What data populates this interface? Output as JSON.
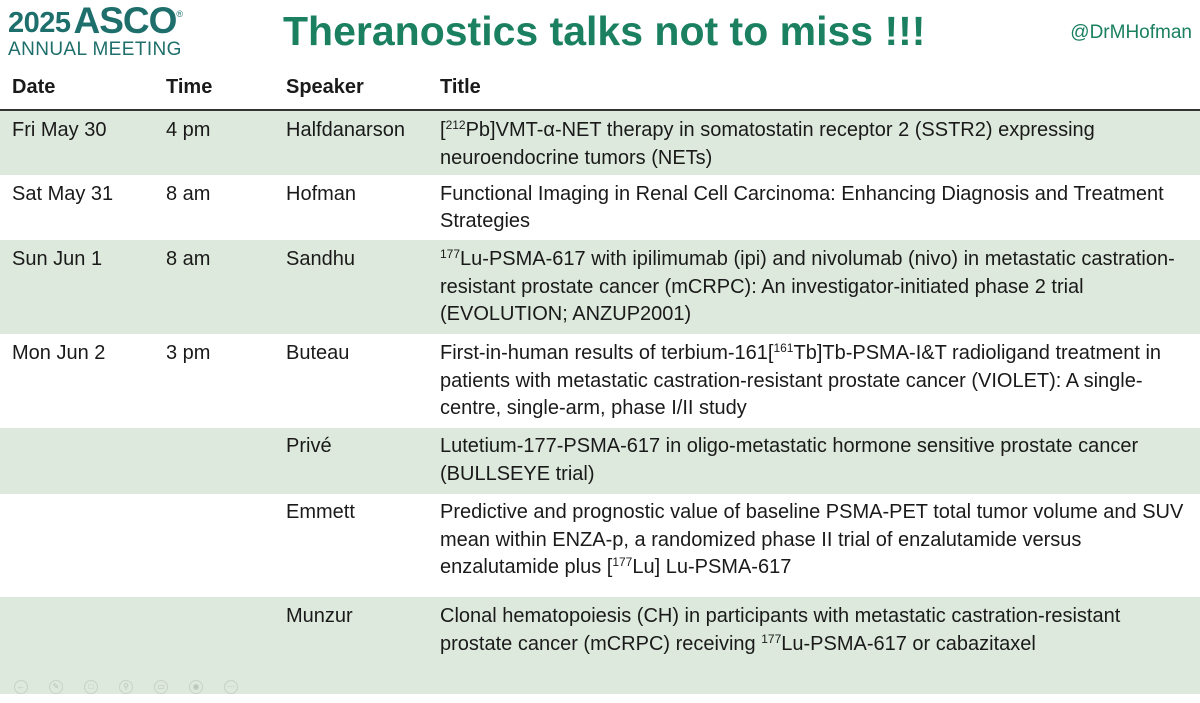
{
  "header": {
    "logo_year": "2025",
    "logo_name": "ASCO",
    "logo_reg": "®",
    "logo_sub": "ANNUAL MEETING",
    "title": "Theranostics talks not to miss !!!",
    "handle": "@DrMHofman"
  },
  "table": {
    "columns": [
      "Date",
      "Time",
      "Speaker",
      "Title"
    ],
    "rows": [
      {
        "date": "Fri May 30",
        "time": "4 pm",
        "speaker": "Halfdanarson",
        "title_pre": "[",
        "title_sup": "212",
        "title_post": "Pb]VMT-α-NET therapy in somatostatin receptor 2 (SSTR2) expressing neuroendocrine tumors (NETs)",
        "title_tail": ""
      },
      {
        "date": "Sat May 31",
        "time": "8 am",
        "speaker": "Hofman",
        "title_pre": "Functional Imaging in Renal Cell Carcinoma: Enhancing Diagnosis and Treatment Strategies",
        "title_sup": "",
        "title_post": "",
        "title_tail": ""
      },
      {
        "date": "Sun Jun 1",
        "time": "8 am",
        "speaker": "Sandhu",
        "title_pre": "",
        "title_sup": "177",
        "title_post": "Lu-PSMA-617 with ipilimumab (ipi) and nivolumab (nivo) in metastatic castration-resistant prostate cancer (mCRPC): An investigator-initiated phase 2 trial (EVOLUTION; ANZUP2001)",
        "title_tail": ""
      },
      {
        "date": "Mon Jun 2",
        "time": "3 pm",
        "speaker": "Buteau",
        "title_pre": "First-in-human results of terbium-161[",
        "title_sup": "161",
        "title_post": "Tb]Tb-PSMA-I&T radioligand treatment in patients with metastatic castration-resistant prostate cancer (VIOLET): A single-centre, single-arm, phase I/II study",
        "title_tail": ""
      },
      {
        "date": "",
        "time": "",
        "speaker": "Privé",
        "title_pre": "Lutetium-177-PSMA-617 in oligo-metastatic hormone sensitive prostate cancer (BULLSEYE trial)",
        "title_sup": "",
        "title_post": "",
        "title_tail": ""
      },
      {
        "date": "",
        "time": "",
        "speaker": "Emmett",
        "title_pre": "Predictive and prognostic value of baseline PSMA-PET total tumor volume and SUV mean within ENZA-p, a randomized phase II trial of enzalutamide versus enzalutamide plus [",
        "title_sup": "177",
        "title_post": "Lu] Lu-PSMA-617",
        "title_tail": ""
      },
      {
        "date": "",
        "time": "",
        "speaker": "Munzur",
        "title_pre": "Clonal hematopoiesis (CH) in participants with metastatic castration-resistant prostate cancer (mCRPC) receiving ",
        "title_sup": "177",
        "title_post": "Lu-PSMA-617 or cabazitaxel",
        "title_tail": ""
      }
    ]
  },
  "toolbar_icons": [
    "back-icon",
    "pen-icon",
    "copy-icon",
    "zoom-icon",
    "present-icon",
    "view-icon",
    "more-icon"
  ]
}
